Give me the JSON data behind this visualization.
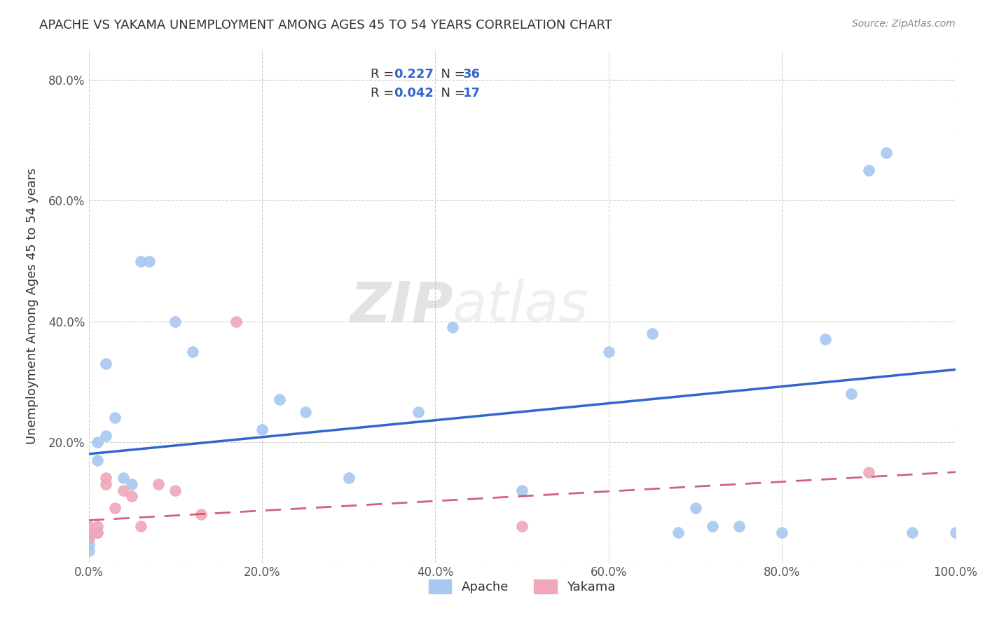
{
  "title": "APACHE VS YAKAMA UNEMPLOYMENT AMONG AGES 45 TO 54 YEARS CORRELATION CHART",
  "source": "Source: ZipAtlas.com",
  "ylabel": "Unemployment Among Ages 45 to 54 years",
  "apache_R": 0.227,
  "apache_N": 36,
  "yakama_R": 0.042,
  "yakama_N": 17,
  "apache_color": "#a8c8f0",
  "yakama_color": "#f0a8b8",
  "apache_line_color": "#3366cc",
  "yakama_line_color": "#cc4466",
  "watermark_zip": "ZIP",
  "watermark_atlas": "atlas",
  "background_color": "#ffffff",
  "grid_color": "#cccccc",
  "apache_x": [
    0.0,
    0.0,
    0.0,
    0.0,
    0.01,
    0.01,
    0.01,
    0.02,
    0.02,
    0.03,
    0.04,
    0.05,
    0.06,
    0.07,
    0.1,
    0.12,
    0.2,
    0.22,
    0.25,
    0.3,
    0.38,
    0.42,
    0.5,
    0.6,
    0.65,
    0.68,
    0.7,
    0.72,
    0.75,
    0.8,
    0.85,
    0.88,
    0.9,
    0.92,
    0.95,
    1.0
  ],
  "apache_y": [
    0.05,
    0.04,
    0.03,
    0.02,
    0.17,
    0.2,
    0.05,
    0.33,
    0.21,
    0.24,
    0.14,
    0.13,
    0.5,
    0.5,
    0.4,
    0.35,
    0.22,
    0.27,
    0.25,
    0.14,
    0.25,
    0.39,
    0.12,
    0.35,
    0.38,
    0.05,
    0.09,
    0.06,
    0.06,
    0.05,
    0.37,
    0.28,
    0.65,
    0.68,
    0.05,
    0.05
  ],
  "yakama_x": [
    0.0,
    0.0,
    0.0,
    0.01,
    0.01,
    0.02,
    0.02,
    0.03,
    0.04,
    0.05,
    0.06,
    0.08,
    0.1,
    0.13,
    0.17,
    0.5,
    0.9
  ],
  "yakama_y": [
    0.06,
    0.05,
    0.04,
    0.06,
    0.05,
    0.14,
    0.13,
    0.09,
    0.12,
    0.11,
    0.06,
    0.13,
    0.12,
    0.08,
    0.4,
    0.06,
    0.15
  ],
  "apache_line_x0": 0.0,
  "apache_line_y0": 0.18,
  "apache_line_x1": 1.0,
  "apache_line_y1": 0.32,
  "yakama_line_x0": 0.0,
  "yakama_line_y0": 0.07,
  "yakama_line_x1": 1.0,
  "yakama_line_y1": 0.15,
  "xlim": [
    0.0,
    1.0
  ],
  "ylim": [
    0.0,
    0.85
  ],
  "xticks": [
    0.0,
    0.2,
    0.4,
    0.6,
    0.8,
    1.0
  ],
  "yticks": [
    0.0,
    0.2,
    0.4,
    0.6,
    0.8
  ],
  "xticklabels": [
    "0.0%",
    "20.0%",
    "40.0%",
    "60.0%",
    "80.0%",
    "100.0%"
  ],
  "yticklabels": [
    "",
    "20.0%",
    "40.0%",
    "60.0%",
    "80.0%"
  ],
  "blue_color": "#3366cc",
  "text_color": "#333333",
  "source_color": "#888888"
}
